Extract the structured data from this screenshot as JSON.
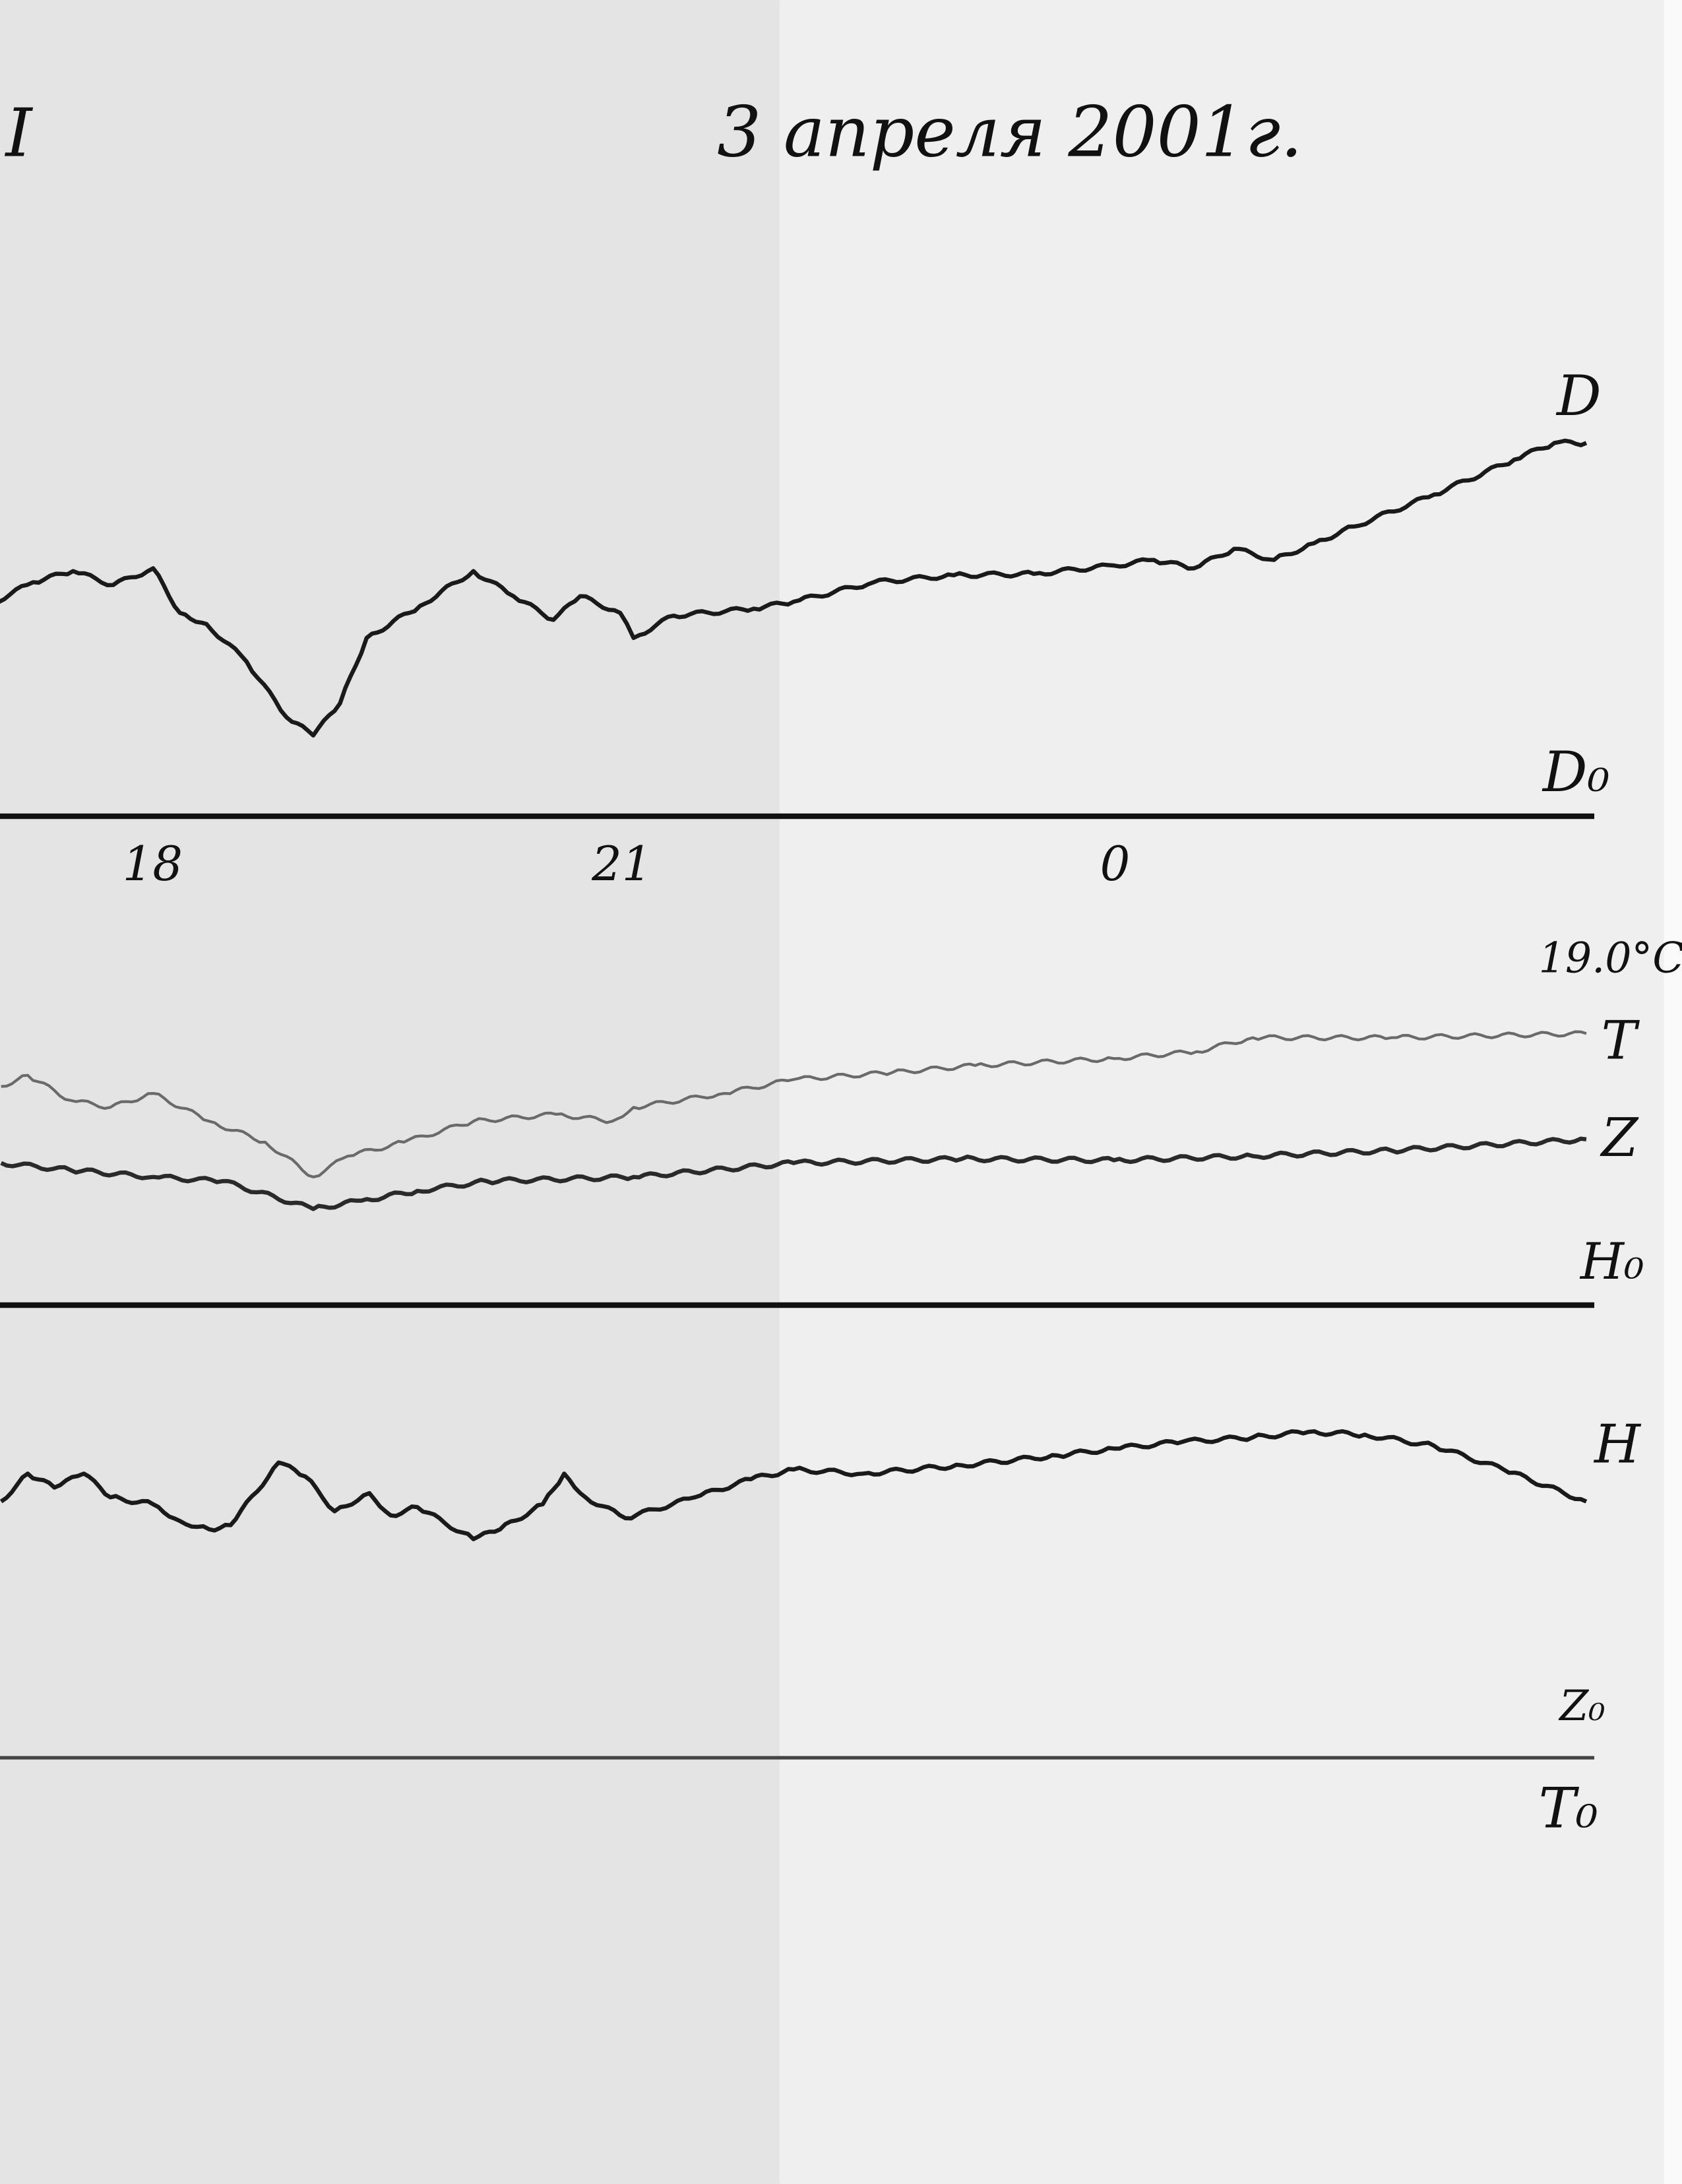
{
  "header": {
    "sheet_number": "I",
    "date": "3 апреля 2001г."
  },
  "labels": {
    "D": "D",
    "D0": "D₀",
    "T": "T",
    "Z": "Z",
    "H0": "H₀",
    "H": "H",
    "Z0": "Z₀",
    "T0": "T₀",
    "temperature": "19.0°C"
  },
  "colors": {
    "paper": "#e4e4e4",
    "ink": "#111111",
    "trace": "#1a1a1a",
    "faint_trace": "#6a6a6a"
  },
  "chart_data": {
    "type": "line",
    "title": "3 апреля 2001г.",
    "xlabel": "",
    "ylabel": "",
    "x_ticks": [
      "18",
      "21",
      "0"
    ],
    "grid": false,
    "baselines": [
      "D₀",
      "H₀",
      "Z₀ / T₀"
    ],
    "series": [
      {
        "name": "D",
        "baseline": "D₀",
        "color": "#1a1a1a",
        "points": [
          [
            "17:00",
            15.3
          ],
          [
            "17:15",
            16.8
          ],
          [
            "17:30",
            17.6
          ],
          [
            "17:45",
            16.6
          ],
          [
            "18:00",
            17.8
          ],
          [
            "18:10",
            14.6
          ],
          [
            "18:20",
            13.8
          ],
          [
            "18:35",
            11.1
          ],
          [
            "18:50",
            7.1
          ],
          [
            "19:00",
            5.8
          ],
          [
            "19:10",
            8.1
          ],
          [
            "19:20",
            12.8
          ],
          [
            "19:40",
            15.1
          ],
          [
            "20:00",
            17.6
          ],
          [
            "20:15",
            15.8
          ],
          [
            "20:30",
            14.1
          ],
          [
            "20:40",
            15.8
          ],
          [
            "20:55",
            14.6
          ],
          [
            "21:00",
            12.8
          ],
          [
            "21:15",
            14.4
          ],
          [
            "21:45",
            14.9
          ],
          [
            "22:00",
            15.4
          ],
          [
            "22:30",
            16.8
          ],
          [
            "23:00",
            17.3
          ],
          [
            "23:30",
            17.4
          ],
          [
            "00:00",
            18.0
          ],
          [
            "00:15",
            18.4
          ],
          [
            "00:30",
            17.8
          ],
          [
            "00:45",
            19.2
          ],
          [
            "01:00",
            18.4
          ],
          [
            "01:15",
            19.6
          ],
          [
            "01:30",
            20.8
          ],
          [
            "02:00",
            23.1
          ],
          [
            "02:30",
            25.6
          ],
          [
            "02:45",
            26.8
          ],
          [
            "02:57",
            26.8
          ]
        ]
      },
      {
        "name": "T",
        "baseline": "T₀",
        "color": "#6a6a6a",
        "points": [
          [
            "17:03",
            48.2
          ],
          [
            "17:13",
            49.0
          ],
          [
            "17:29",
            47.2
          ],
          [
            "17:44",
            46.7
          ],
          [
            "18:00",
            47.7
          ],
          [
            "18:21",
            45.7
          ],
          [
            "18:42",
            44.2
          ],
          [
            "19:00",
            41.7
          ],
          [
            "19:13",
            43.2
          ],
          [
            "19:34",
            44.2
          ],
          [
            "20:00",
            45.7
          ],
          [
            "20:31",
            46.2
          ],
          [
            "20:52",
            45.7
          ],
          [
            "21:00",
            46.7
          ],
          [
            "21:34",
            47.7
          ],
          [
            "22:00",
            48.7
          ],
          [
            "22:37",
            49.2
          ],
          [
            "23:08",
            49.7
          ],
          [
            "00:00",
            50.2
          ],
          [
            "00:31",
            50.7
          ],
          [
            "00:52",
            51.7
          ],
          [
            "01:44",
            51.7
          ],
          [
            "02:57",
            52.0
          ]
        ]
      },
      {
        "name": "Z",
        "baseline": "Z₀",
        "color": "#2a2a2a",
        "points": [
          [
            "17:03",
            42.7
          ],
          [
            "17:29",
            42.2
          ],
          [
            "18:00",
            41.7
          ],
          [
            "18:26",
            41.4
          ],
          [
            "19:00",
            39.4
          ],
          [
            "19:18",
            40.0
          ],
          [
            "19:39",
            40.7
          ],
          [
            "20:05",
            41.4
          ],
          [
            "21:00",
            41.7
          ],
          [
            "22:00",
            42.7
          ],
          [
            "23:03",
            43.0
          ],
          [
            "00:00",
            42.9
          ],
          [
            "00:52",
            43.2
          ],
          [
            "01:44",
            43.6
          ],
          [
            "02:57",
            44.4
          ]
        ]
      },
      {
        "name": "H",
        "baseline": "H₀",
        "color": "#1a1a1a",
        "points": [
          [
            "17:03",
            -14.1
          ],
          [
            "17:13",
            -12.1
          ],
          [
            "17:23",
            -13.1
          ],
          [
            "17:34",
            -12.1
          ],
          [
            "17:44",
            -13.8
          ],
          [
            "18:00",
            -14.3
          ],
          [
            "18:10",
            -15.5
          ],
          [
            "18:21",
            -16.1
          ],
          [
            "18:29",
            -15.8
          ],
          [
            "18:47",
            -11.3
          ],
          [
            "18:57",
            -12.3
          ],
          [
            "19:08",
            -14.8
          ],
          [
            "19:21",
            -13.5
          ],
          [
            "19:29",
            -15.1
          ],
          [
            "19:39",
            -14.5
          ],
          [
            "20:00",
            -16.8
          ],
          [
            "20:10",
            -16.1
          ],
          [
            "20:26",
            -14.3
          ],
          [
            "20:34",
            -12.1
          ],
          [
            "20:42",
            -13.8
          ],
          [
            "20:57",
            -15.3
          ],
          [
            "21:23",
            -13.8
          ],
          [
            "21:44",
            -12.5
          ],
          [
            "22:00",
            -11.8
          ],
          [
            "22:26",
            -12.1
          ],
          [
            "23:03",
            -11.5
          ],
          [
            "23:39",
            -10.8
          ],
          [
            "00:00",
            -10.3
          ],
          [
            "00:26",
            -9.8
          ],
          [
            "00:52",
            -9.5
          ],
          [
            "01:13",
            -9.1
          ],
          [
            "01:34",
            -9.3
          ],
          [
            "02:00",
            -10.1
          ],
          [
            "02:26",
            -11.8
          ],
          [
            "02:57",
            -14.1
          ]
        ]
      }
    ]
  }
}
